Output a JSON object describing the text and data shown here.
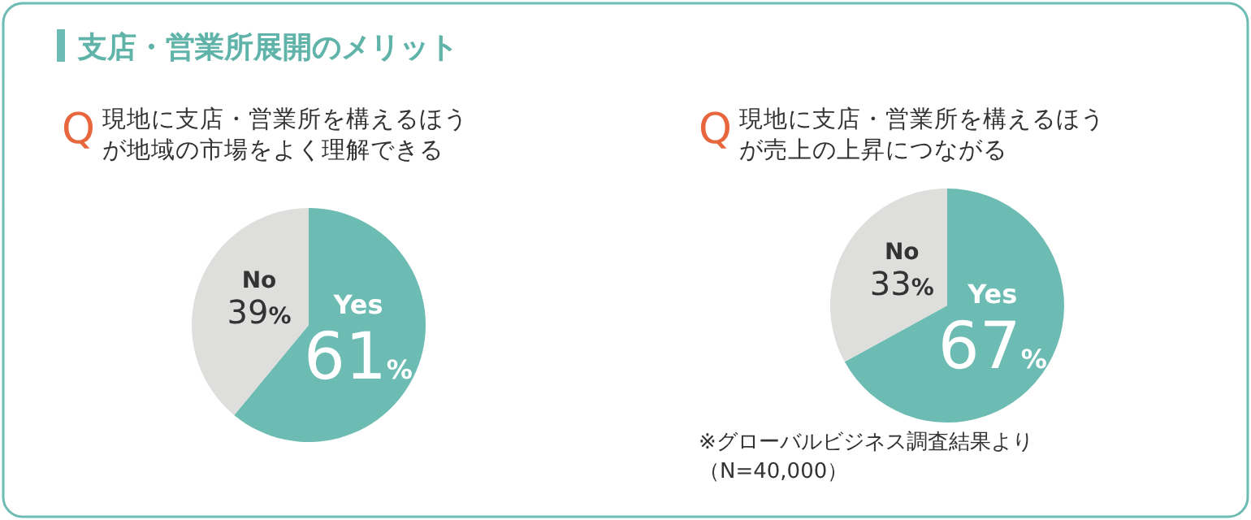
{
  "chart_data": [
    {
      "type": "pie",
      "title": "支店・営業所展開のメリット",
      "subtitle": "Q現地に支店・営業所を構えるほうが地域の市場をよく理解できる",
      "categories": [
        "Yes",
        "No"
      ],
      "values": [
        61,
        39
      ],
      "colors": [
        "#6dbcb3",
        "#dededd"
      ],
      "value_labels": [
        "61%",
        "39%"
      ]
    },
    {
      "type": "pie",
      "subtitle": "Q現地に支店・営業所を構えるほうが売上の上昇につながる",
      "categories": [
        "Yes",
        "No"
      ],
      "values": [
        67,
        33
      ],
      "colors": [
        "#6dbcb3",
        "#dededd"
      ],
      "value_labels": [
        "67%",
        "33%"
      ],
      "annotations": [
        "※グローバルビジネス調査結果より（N=40,000）"
      ]
    }
  ]
}
